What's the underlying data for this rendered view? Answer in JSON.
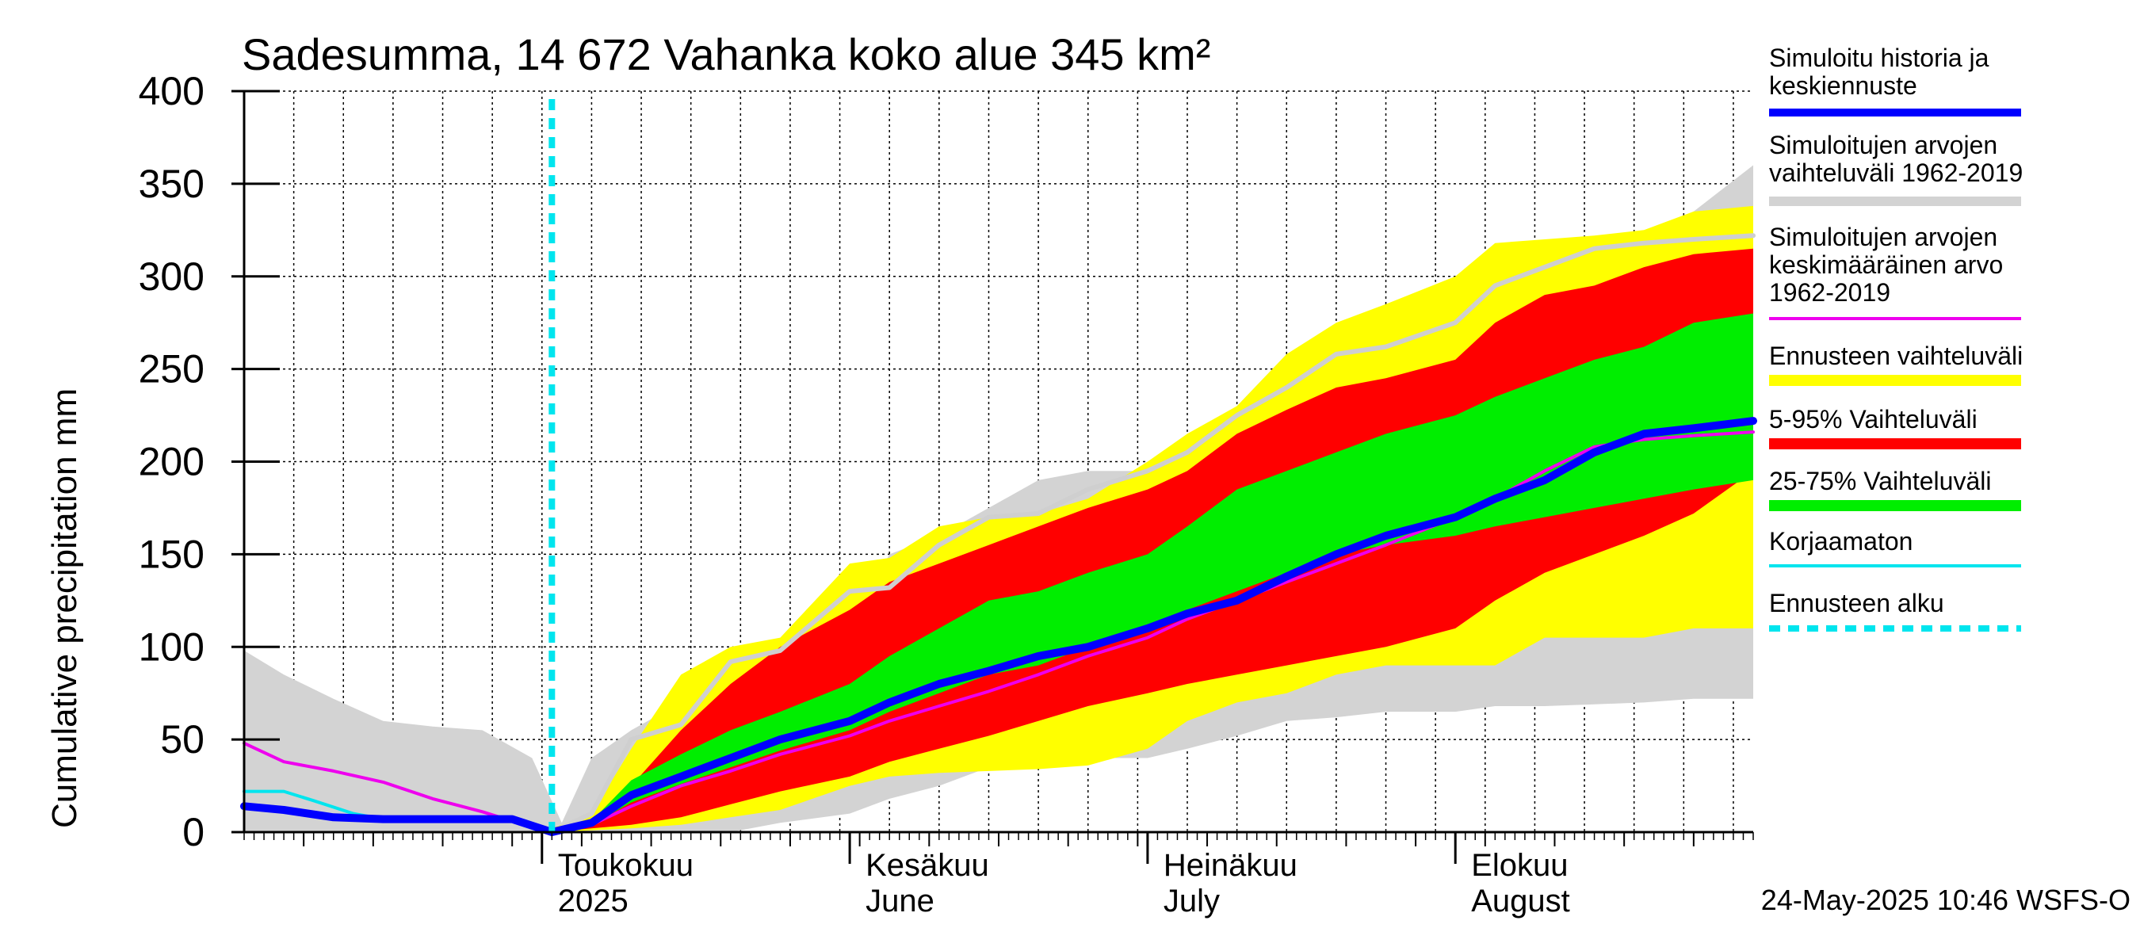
{
  "chart_data": {
    "type": "area",
    "title": "Sadesumma, 14 672 Vahanka koko alue 345 km²",
    "ylabel": "Cumulative precipitation   mm",
    "xlabel": "",
    "ylim": [
      0,
      400
    ],
    "yticks": [
      0,
      50,
      100,
      150,
      200,
      250,
      300,
      350,
      400
    ],
    "grid": true,
    "legend_placement": "right",
    "x_range": [
      "2025-04-01",
      "2025-08-31"
    ],
    "x_unit": "date",
    "month_labels": [
      {
        "date": "2025-05-01",
        "fi": "Toukokuu",
        "en": "2025"
      },
      {
        "date": "2025-06-01",
        "fi": "Kesäkuu",
        "en": "June"
      },
      {
        "date": "2025-07-01",
        "fi": "Heinäkuu",
        "en": "July"
      },
      {
        "date": "2025-08-01",
        "fi": "Elokuu",
        "en": "August"
      }
    ],
    "forecast_start": "2025-05-02",
    "footer": "24-May-2025 10:46 WSFS-O",
    "series": [
      {
        "name": "Simuloitujen arvojen vaihteluväli 1962-2019",
        "kind": "band",
        "color": "#d3d3d3",
        "dates": [
          "2025-04-01",
          "2025-04-05",
          "2025-04-10",
          "2025-04-15",
          "2025-04-20",
          "2025-04-25",
          "2025-04-30",
          "2025-05-03",
          "2025-05-06",
          "2025-05-10",
          "2025-05-15",
          "2025-05-20",
          "2025-05-25",
          "2025-06-01",
          "2025-06-05",
          "2025-06-10",
          "2025-06-15",
          "2025-06-20",
          "2025-06-25",
          "2025-07-01",
          "2025-07-05",
          "2025-07-10",
          "2025-07-15",
          "2025-07-20",
          "2025-07-25",
          "2025-08-01",
          "2025-08-05",
          "2025-08-10",
          "2025-08-15",
          "2025-08-20",
          "2025-08-25",
          "2025-08-31"
        ],
        "upper": [
          98,
          85,
          72,
          60,
          57,
          55,
          40,
          5,
          40,
          55,
          70,
          83,
          88,
          110,
          150,
          160,
          175,
          190,
          195,
          195,
          205,
          230,
          258,
          268,
          275,
          290,
          305,
          310,
          318,
          322,
          335,
          360
        ],
        "lower": [
          0,
          0,
          0,
          0,
          0,
          0,
          0,
          0,
          0,
          0,
          0,
          0,
          5,
          10,
          18,
          25,
          35,
          38,
          40,
          40,
          45,
          52,
          60,
          62,
          65,
          65,
          68,
          68,
          69,
          70,
          72,
          72
        ]
      },
      {
        "name": "Ennusteen vaihteluväli",
        "kind": "band",
        "color": "#ffff00",
        "dates": [
          "2025-05-02",
          "2025-05-06",
          "2025-05-10",
          "2025-05-15",
          "2025-05-20",
          "2025-05-25",
          "2025-06-01",
          "2025-06-05",
          "2025-06-10",
          "2025-06-15",
          "2025-06-20",
          "2025-06-25",
          "2025-07-01",
          "2025-07-05",
          "2025-07-10",
          "2025-07-15",
          "2025-07-20",
          "2025-07-25",
          "2025-08-01",
          "2025-08-05",
          "2025-08-10",
          "2025-08-15",
          "2025-08-20",
          "2025-08-25",
          "2025-08-31"
        ],
        "upper": [
          2,
          10,
          45,
          85,
          100,
          105,
          145,
          148,
          165,
          170,
          172,
          180,
          200,
          215,
          230,
          258,
          275,
          285,
          300,
          318,
          320,
          322,
          325,
          335,
          338
        ],
        "lower": [
          0,
          1,
          2,
          4,
          8,
          12,
          25,
          30,
          32,
          33,
          34,
          36,
          45,
          60,
          70,
          75,
          85,
          90,
          90,
          90,
          105,
          105,
          105,
          110,
          110
        ]
      },
      {
        "name": "5-95% Vaihteluväli",
        "kind": "band",
        "color": "#ff0000",
        "dates": [
          "2025-05-02",
          "2025-05-06",
          "2025-05-10",
          "2025-05-15",
          "2025-05-20",
          "2025-05-25",
          "2025-06-01",
          "2025-06-05",
          "2025-06-10",
          "2025-06-15",
          "2025-06-20",
          "2025-06-25",
          "2025-07-01",
          "2025-07-05",
          "2025-07-10",
          "2025-07-15",
          "2025-07-20",
          "2025-07-25",
          "2025-08-01",
          "2025-08-05",
          "2025-08-10",
          "2025-08-15",
          "2025-08-20",
          "2025-08-25",
          "2025-08-31"
        ],
        "upper": [
          1,
          6,
          25,
          55,
          80,
          100,
          120,
          135,
          145,
          155,
          165,
          175,
          185,
          195,
          215,
          228,
          240,
          245,
          255,
          275,
          290,
          295,
          305,
          312,
          315
        ],
        "lower": [
          0,
          2,
          4,
          8,
          15,
          22,
          30,
          38,
          45,
          52,
          60,
          68,
          75,
          80,
          85,
          90,
          95,
          100,
          110,
          125,
          140,
          150,
          160,
          172,
          195
        ]
      },
      {
        "name": "25-75% Vaihteluväli",
        "kind": "band",
        "color": "#00ee00",
        "dates": [
          "2025-05-02",
          "2025-05-06",
          "2025-05-10",
          "2025-05-15",
          "2025-05-20",
          "2025-05-25",
          "2025-06-01",
          "2025-06-05",
          "2025-06-10",
          "2025-06-15",
          "2025-06-20",
          "2025-06-25",
          "2025-07-01",
          "2025-07-05",
          "2025-07-10",
          "2025-07-15",
          "2025-07-20",
          "2025-07-25",
          "2025-08-01",
          "2025-08-05",
          "2025-08-10",
          "2025-08-15",
          "2025-08-20",
          "2025-08-25",
          "2025-08-31"
        ],
        "upper": [
          1,
          6,
          28,
          42,
          55,
          65,
          80,
          95,
          110,
          125,
          130,
          140,
          150,
          165,
          185,
          195,
          205,
          215,
          225,
          235,
          245,
          255,
          262,
          275,
          280
        ],
        "lower": [
          0,
          4,
          16,
          26,
          35,
          44,
          55,
          65,
          75,
          85,
          90,
          100,
          110,
          120,
          130,
          140,
          150,
          155,
          160,
          165,
          170,
          175,
          180,
          185,
          190
        ]
      },
      {
        "name": "Simuloitu historia ja keskiennuste",
        "kind": "line",
        "color": "#0000ff",
        "dates": [
          "2025-04-01",
          "2025-04-05",
          "2025-04-10",
          "2025-04-15",
          "2025-04-20",
          "2025-04-25",
          "2025-04-28",
          "2025-05-02",
          "2025-05-06",
          "2025-05-10",
          "2025-05-15",
          "2025-05-20",
          "2025-05-25",
          "2025-06-01",
          "2025-06-05",
          "2025-06-10",
          "2025-06-15",
          "2025-06-20",
          "2025-06-25",
          "2025-07-01",
          "2025-07-05",
          "2025-07-10",
          "2025-07-15",
          "2025-07-20",
          "2025-07-25",
          "2025-08-01",
          "2025-08-05",
          "2025-08-10",
          "2025-08-15",
          "2025-08-20",
          "2025-08-25",
          "2025-08-31"
        ],
        "values": [
          14,
          12,
          8,
          7,
          7,
          7,
          7,
          0,
          5,
          20,
          30,
          40,
          50,
          60,
          70,
          80,
          87,
          95,
          100,
          110,
          118,
          125,
          138,
          150,
          160,
          170,
          180,
          190,
          205,
          215,
          218,
          222
        ]
      },
      {
        "name": "Simuloitujen arvojen keskimääräinen arvo 1962-2019",
        "kind": "line",
        "color": "#ee00ee",
        "dates": [
          "2025-04-01",
          "2025-04-05",
          "2025-04-10",
          "2025-04-15",
          "2025-04-20",
          "2025-04-25",
          "2025-04-28",
          "2025-05-02",
          "2025-05-06",
          "2025-05-10",
          "2025-05-15",
          "2025-05-20",
          "2025-05-25",
          "2025-06-01",
          "2025-06-05",
          "2025-06-10",
          "2025-06-15",
          "2025-06-20",
          "2025-06-25",
          "2025-07-01",
          "2025-07-05",
          "2025-07-10",
          "2025-07-15",
          "2025-07-20",
          "2025-07-25",
          "2025-08-01",
          "2025-08-05",
          "2025-08-10",
          "2025-08-15",
          "2025-08-20",
          "2025-08-25",
          "2025-08-31"
        ],
        "values": [
          48,
          38,
          33,
          27,
          18,
          11,
          6,
          0,
          4,
          14,
          25,
          33,
          42,
          52,
          60,
          68,
          76,
          85,
          95,
          105,
          115,
          125,
          135,
          145,
          155,
          170,
          180,
          195,
          208,
          212,
          214,
          216
        ]
      },
      {
        "name": "Korjaamaton",
        "kind": "line",
        "color": "#00e5ee",
        "dates": [
          "2025-04-01",
          "2025-04-05",
          "2025-04-08",
          "2025-04-12",
          "2025-04-15",
          "2025-04-20",
          "2025-04-25",
          "2025-04-28",
          "2025-05-02"
        ],
        "values": [
          22,
          22,
          17,
          10,
          7,
          7,
          7,
          7,
          0
        ]
      },
      {
        "name": "Simuloitu sademäärä (harmaa viiva)",
        "kind": "line",
        "color": "#cfcfcf",
        "dates": [
          "2025-05-02",
          "2025-05-06",
          "2025-05-10",
          "2025-05-15",
          "2025-05-20",
          "2025-05-25",
          "2025-06-01",
          "2025-06-05",
          "2025-06-10",
          "2025-06-15",
          "2025-06-20",
          "2025-06-25",
          "2025-07-01",
          "2025-07-05",
          "2025-07-10",
          "2025-07-15",
          "2025-07-20",
          "2025-07-25",
          "2025-08-01",
          "2025-08-05",
          "2025-08-10",
          "2025-08-15",
          "2025-08-20",
          "2025-08-25",
          "2025-08-31"
        ],
        "values": [
          0,
          10,
          50,
          58,
          92,
          98,
          130,
          132,
          155,
          170,
          172,
          185,
          195,
          205,
          225,
          240,
          258,
          262,
          275,
          295,
          305,
          315,
          318,
          320,
          322
        ]
      }
    ]
  },
  "legend": [
    {
      "lines": [
        "Simuloitu historia ja",
        "keskiennuste"
      ],
      "color": "#0000ff",
      "style": "solid",
      "thick": 10
    },
    {
      "lines": [
        "Simuloitujen arvojen",
        "vaihteluväli 1962-2019"
      ],
      "color": "#d3d3d3",
      "style": "solid",
      "thick": 12
    },
    {
      "lines": [
        "Simuloitujen arvojen",
        "keskimääräinen arvo",
        "   1962-2019"
      ],
      "color": "#ee00ee",
      "style": "solid",
      "thick": 4
    },
    {
      "lines": [
        "Ennusteen vaihteluväli"
      ],
      "color": "#ffff00",
      "style": "solid",
      "thick": 14
    },
    {
      "lines": [
        "5-95% Vaihteluväli"
      ],
      "color": "#ff0000",
      "style": "solid",
      "thick": 14
    },
    {
      "lines": [
        "25-75% Vaihteluväli"
      ],
      "color": "#00ee00",
      "style": "solid",
      "thick": 14
    },
    {
      "lines": [
        "Korjaamaton"
      ],
      "color": "#00e5ee",
      "style": "solid",
      "thick": 4
    },
    {
      "lines": [
        "Ennusteen alku"
      ],
      "color": "#00e5ee",
      "style": "dashed",
      "thick": 8
    }
  ]
}
